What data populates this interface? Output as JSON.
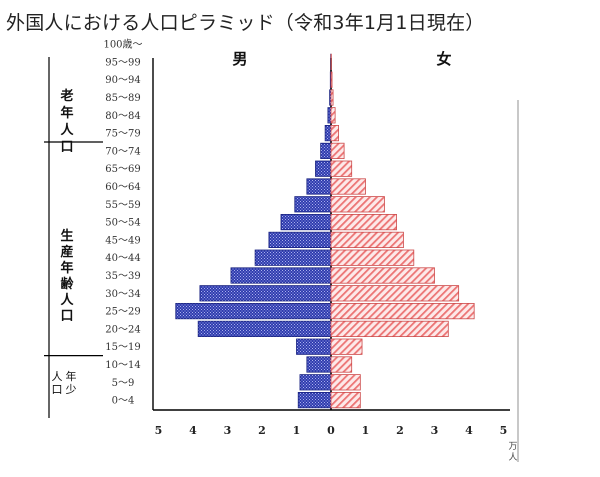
{
  "title": "外国人における人口ピラミッド（令和3年1月1日現在）",
  "chart_data": {
    "type": "bar",
    "orientation": "horizontal-pyramid",
    "categories": [
      "0～4",
      "5～9",
      "10～14",
      "15～19",
      "20～24",
      "25～29",
      "30～34",
      "35～39",
      "40～44",
      "45～49",
      "50～54",
      "55～59",
      "60～64",
      "65～69",
      "70～74",
      "75～79",
      "80～84",
      "85～89",
      "90～94",
      "95～99",
      "100歳～"
    ],
    "series": [
      {
        "name": "男",
        "values": [
          0.95,
          0.9,
          0.7,
          1.0,
          3.85,
          4.5,
          3.8,
          2.9,
          2.2,
          1.8,
          1.45,
          1.05,
          0.7,
          0.45,
          0.3,
          0.17,
          0.09,
          0.04,
          0.02,
          0.01,
          0.0
        ],
        "color": "#2e3bb3"
      },
      {
        "name": "女",
        "values": [
          0.85,
          0.85,
          0.6,
          0.9,
          3.4,
          4.15,
          3.7,
          3.0,
          2.4,
          2.1,
          1.9,
          1.55,
          1.0,
          0.6,
          0.38,
          0.22,
          0.12,
          0.06,
          0.03,
          0.01,
          0.0
        ],
        "color": "#f07c7c"
      }
    ],
    "x_ticks_left": [
      "5",
      "4",
      "3",
      "2",
      "1",
      "0"
    ],
    "x_ticks_right": [
      "1",
      "2",
      "3",
      "4",
      "5"
    ],
    "x_unit": "万人",
    "xlim": [
      0,
      5
    ],
    "groups": [
      {
        "label": "老年人口",
        "from": "65～69",
        "to": "100歳～"
      },
      {
        "label": "生産年齢人口",
        "from": "15～19",
        "to": "60～64"
      },
      {
        "label": "年少人口",
        "from": "0～4",
        "to": "10～14"
      }
    ],
    "grid": false,
    "legend": "top"
  }
}
